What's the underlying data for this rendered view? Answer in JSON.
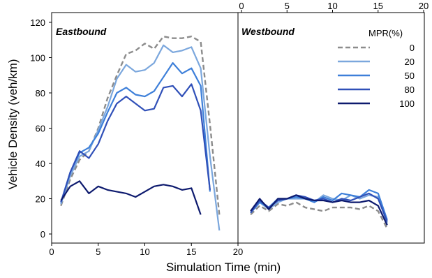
{
  "chart_data": {
    "type": "line",
    "ylabel": "Vehicle Density (veh/km)",
    "xlabel": "Simulation Time (min)",
    "ylim": [
      0,
      120
    ],
    "y_ticks": [
      "0",
      "20",
      "40",
      "60",
      "80",
      "100",
      "120"
    ],
    "x_ticks": [
      "0",
      "5",
      "10",
      "15",
      "20"
    ],
    "xlim": [
      0,
      20
    ],
    "legend": {
      "title": "MPR(%)",
      "position": "top-right"
    },
    "colors": {
      "0": "#8c8c8c",
      "20": "#7ba7dd",
      "50": "#3d7fd9",
      "80": "#3050b8",
      "100": "#0d1a6e"
    },
    "panels": [
      {
        "title": "Eastbound",
        "series": [
          {
            "name": "0",
            "x": [
              1,
              2,
              3,
              4,
              5,
              6,
              7,
              8,
              9,
              10,
              11,
              12,
              13,
              14,
              15,
              16,
              17,
              18
            ],
            "y": [
              16,
              31,
              42,
              47,
              60,
              77,
              90,
              102,
              104,
              108,
              105,
              112,
              111,
              111,
              112,
              109,
              62,
              11
            ]
          },
          {
            "name": "20",
            "x": [
              1,
              2,
              3,
              4,
              5,
              6,
              7,
              8,
              9,
              10,
              11,
              12,
              13,
              14,
              15,
              16,
              17,
              18
            ],
            "y": [
              17,
              33,
              44,
              47,
              59,
              72,
              88,
              96,
              92,
              93,
              97,
              107,
              103,
              104,
              106,
              94,
              44,
              2
            ]
          },
          {
            "name": "50",
            "x": [
              1,
              2,
              3,
              4,
              5,
              6,
              7,
              8,
              9,
              10,
              11,
              12,
              13,
              14,
              15,
              16,
              17
            ],
            "y": [
              18,
              35,
              46,
              49,
              57,
              69,
              80,
              83,
              79,
              78,
              81,
              89,
              97,
              91,
              94,
              84,
              24
            ]
          },
          {
            "name": "80",
            "x": [
              1,
              2,
              3,
              4,
              5,
              6,
              7,
              8,
              9,
              10,
              11,
              12,
              13,
              14,
              15,
              16,
              17
            ],
            "y": [
              18,
              35,
              47,
              43,
              51,
              64,
              74,
              78,
              74,
              70,
              71,
              83,
              84,
              78,
              85,
              70,
              25
            ]
          },
          {
            "name": "100",
            "x": [
              1,
              2,
              3,
              4,
              5,
              6,
              7,
              8,
              9,
              10,
              11,
              12,
              13,
              14,
              15,
              16
            ],
            "y": [
              19,
              27,
              30,
              23,
              27,
              25,
              24,
              23,
              21,
              24,
              27,
              28,
              27,
              25,
              26,
              11
            ]
          }
        ]
      },
      {
        "title": "Westbound",
        "series": [
          {
            "name": "0",
            "x": [
              1,
              2,
              3,
              4,
              5,
              6,
              7,
              8,
              9,
              10,
              11,
              12,
              13,
              14,
              15,
              16
            ],
            "y": [
              11,
              16,
              13,
              17,
              16,
              18,
              15,
              14,
              13,
              15,
              15,
              15,
              14,
              16,
              13,
              3
            ]
          },
          {
            "name": "20",
            "x": [
              1,
              2,
              3,
              4,
              5,
              6,
              7,
              8,
              9,
              10,
              11,
              12,
              13,
              14,
              15,
              16
            ],
            "y": [
              12,
              18,
              14,
              18,
              20,
              20,
              20,
              18,
              22,
              20,
              19,
              22,
              20,
              22,
              21,
              6
            ]
          },
          {
            "name": "50",
            "x": [
              1,
              2,
              3,
              4,
              5,
              6,
              7,
              8,
              9,
              10,
              11,
              12,
              13,
              14,
              15,
              16
            ],
            "y": [
              12,
              18,
              15,
              20,
              20,
              21,
              20,
              18,
              21,
              19,
              23,
              22,
              21,
              25,
              23,
              8
            ]
          },
          {
            "name": "80",
            "x": [
              1,
              2,
              3,
              4,
              5,
              6,
              7,
              8,
              9,
              10,
              11,
              12,
              13,
              14,
              15,
              16
            ],
            "y": [
              12,
              19,
              15,
              19,
              20,
              22,
              21,
              19,
              20,
              18,
              20,
              19,
              21,
              23,
              20,
              7
            ]
          },
          {
            "name": "100",
            "x": [
              1,
              2,
              3,
              4,
              5,
              6,
              7,
              8,
              9,
              10,
              11,
              12,
              13,
              14,
              15,
              16
            ],
            "y": [
              13,
              20,
              14,
              20,
              20,
              22,
              20,
              19,
              19,
              18,
              19,
              18,
              18,
              19,
              16,
              5
            ]
          }
        ]
      }
    ]
  }
}
